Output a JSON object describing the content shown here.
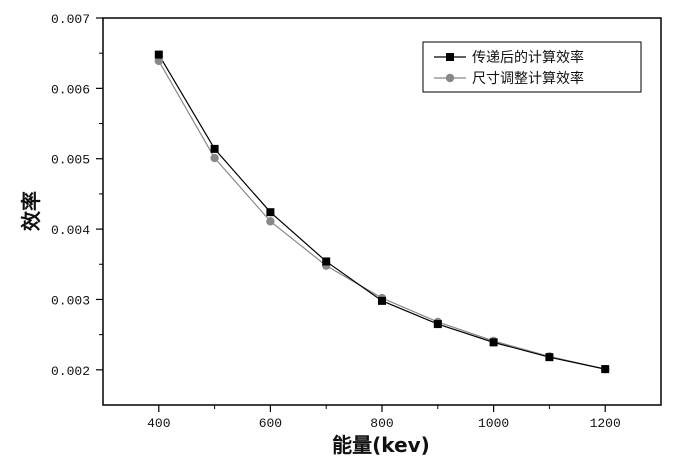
{
  "chart_data": {
    "type": "line",
    "title": "",
    "xlabel": "能量(kev)",
    "ylabel": "效率",
    "xlim": [
      300,
      1300
    ],
    "ylim": [
      0.0015,
      0.007
    ],
    "x_ticks": [
      400,
      600,
      800,
      1000,
      1200
    ],
    "x_tick_labels": [
      "400",
      "600",
      "800",
      "1000",
      "1200"
    ],
    "y_ticks": [
      0.002,
      0.003,
      0.004,
      0.005,
      0.006,
      0.007
    ],
    "y_tick_labels": [
      "0.002",
      "0.003",
      "0.004",
      "0.005",
      "0.006",
      "0.007"
    ],
    "grid": false,
    "legend_position": "top-right",
    "x": [
      400,
      500,
      600,
      700,
      800,
      900,
      1000,
      1100,
      1200
    ],
    "series": [
      {
        "name": "传递后的计算效率",
        "marker": "square",
        "color": "#000000",
        "values": [
          0.00648,
          0.00514,
          0.00424,
          0.00354,
          0.00298,
          0.00265,
          0.00239,
          0.00218,
          0.00201
        ]
      },
      {
        "name": "尺寸调整计算效率",
        "marker": "circle",
        "color": "#888888",
        "values": [
          0.00639,
          0.00501,
          0.00411,
          0.00348,
          0.00302,
          0.00268,
          0.00241,
          0.00219,
          0.00201
        ]
      }
    ]
  }
}
